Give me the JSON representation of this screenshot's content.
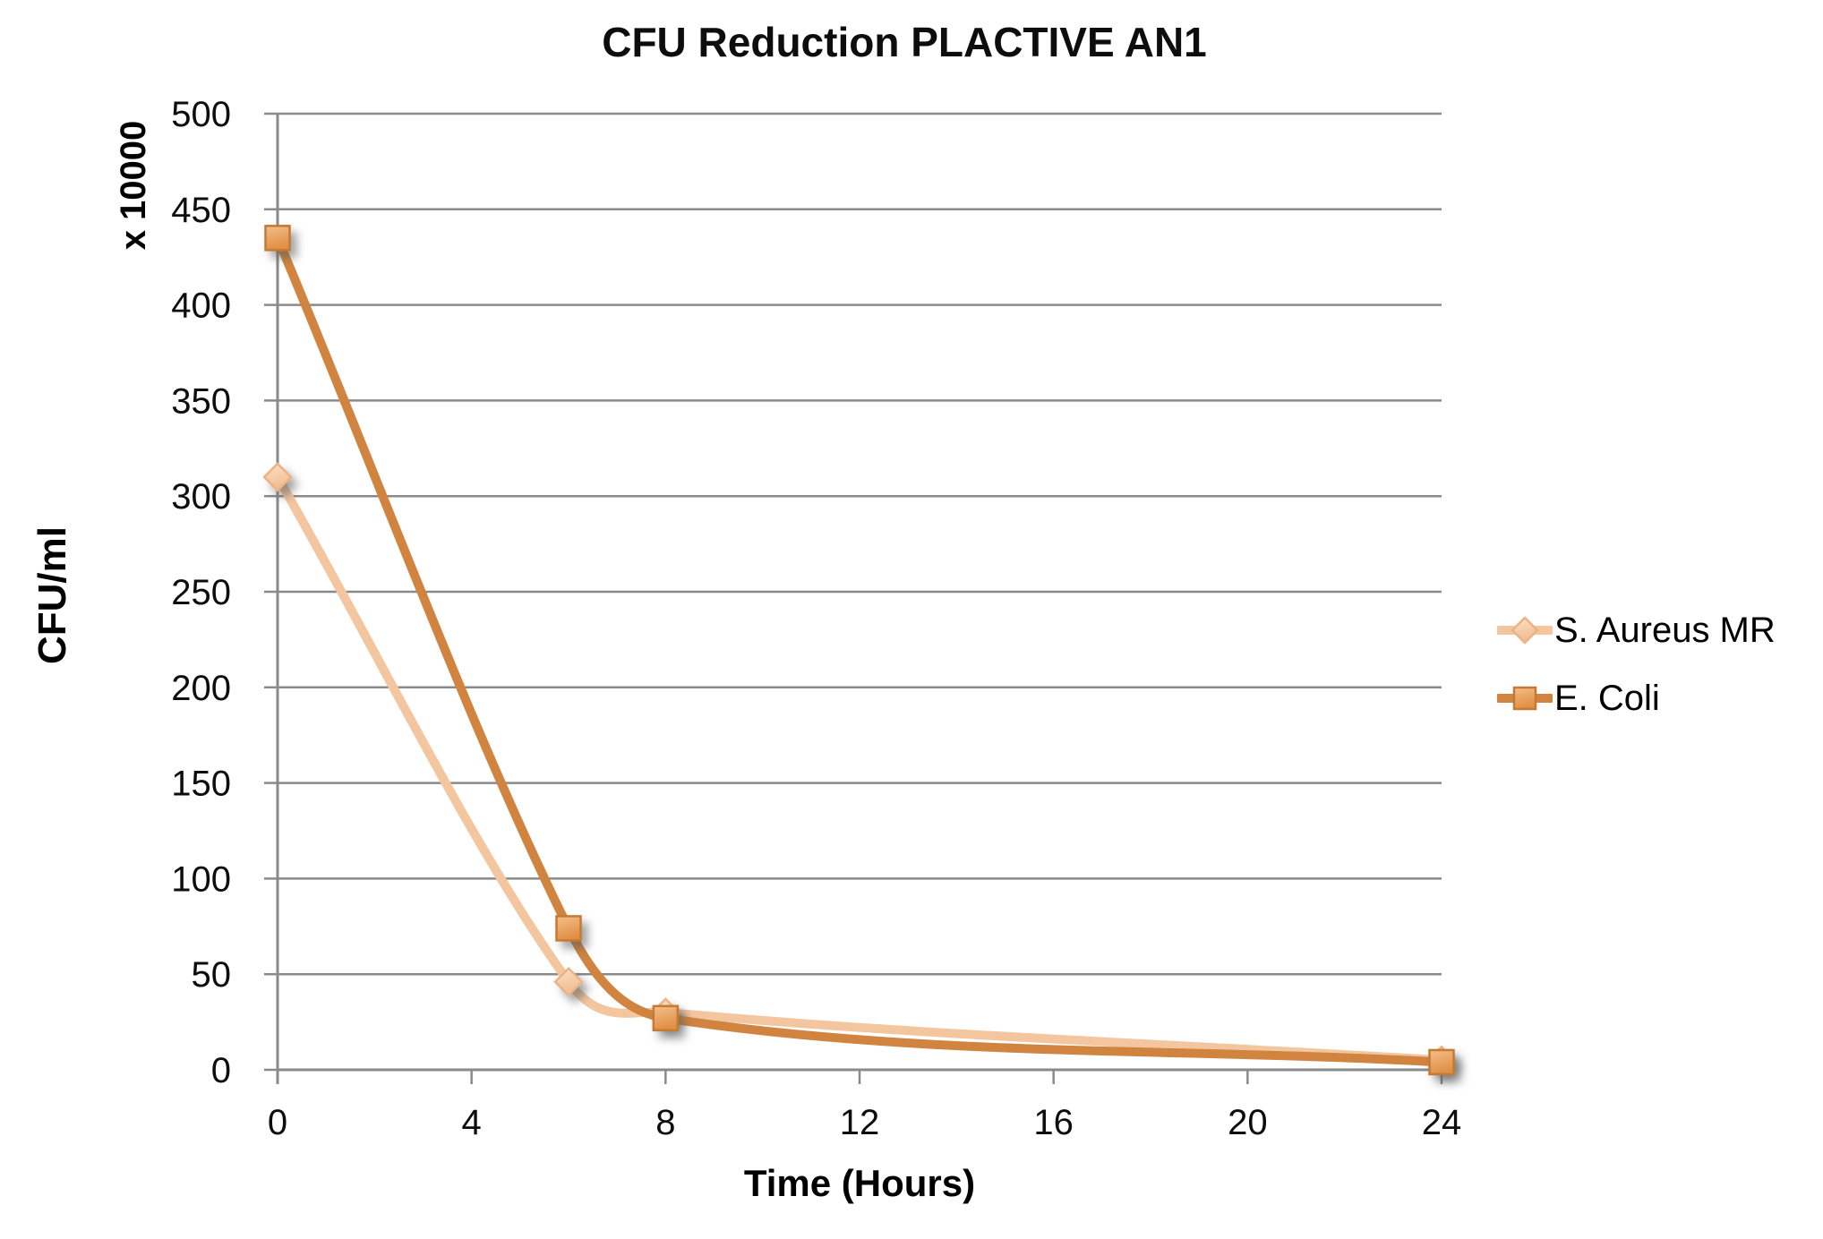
{
  "chart_data": {
    "type": "line",
    "title": "CFU Reduction PLACTIVE AN1",
    "xlabel": "Time (Hours)",
    "ylabel": "CFU/ml",
    "y_unit_label": "x 10000",
    "x": [
      0,
      6,
      8,
      24
    ],
    "series": [
      {
        "name": "S. Aureus MR",
        "values": [
          310,
          46,
          30,
          5
        ],
        "marker": "diamond",
        "line_color": "#F3C6A0",
        "marker_fill_light": "#FAE2C8",
        "marker_fill_dark": "#F1BB8E",
        "marker_stroke": "#EDB285"
      },
      {
        "name": "E. Coli",
        "values": [
          435,
          74,
          27,
          4
        ],
        "marker": "square",
        "line_color": "#D08440",
        "marker_fill_light": "#F4BE8A",
        "marker_fill_dark": "#E08F44",
        "marker_stroke": "#C57A33"
      }
    ],
    "xlim": [
      0,
      24
    ],
    "xticks": [
      0,
      4,
      8,
      12,
      16,
      20,
      24
    ],
    "ylim": [
      0,
      500
    ],
    "yticks": [
      0,
      50,
      100,
      150,
      200,
      250,
      300,
      350,
      400,
      450,
      500
    ],
    "grid": "horizontal",
    "gridline_color": "#8A8A8A",
    "axis_color": "#8A8A8A",
    "tick_label_color": "#0d0d0d",
    "legend_position": "right",
    "smooth": true
  }
}
